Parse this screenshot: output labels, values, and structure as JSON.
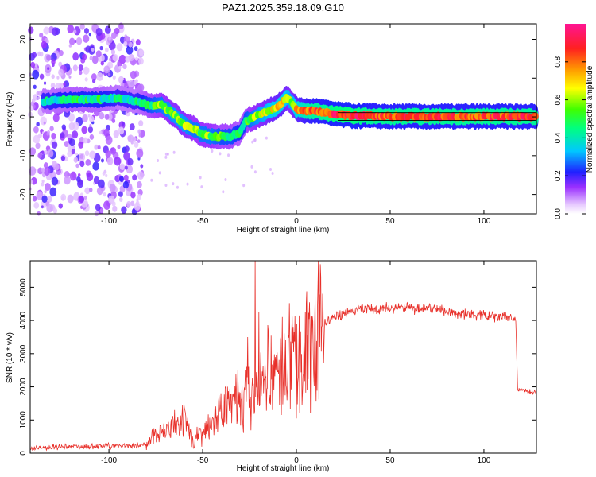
{
  "title": "PAZ1.2025.359.18.09.G10",
  "chart_data": [
    {
      "type": "heatmap",
      "name": "spectrogram",
      "xlabel": "Height of straight line (km)",
      "ylabel": "Frequency (Hz)",
      "xlim": [
        -142,
        128
      ],
      "ylim": [
        -25,
        24
      ],
      "xticks": [
        -100,
        -50,
        0,
        50,
        100
      ],
      "yticks": [
        -20,
        -10,
        0,
        10,
        20
      ],
      "xtick_labels": [
        "-100",
        "-50",
        "0",
        "50",
        "100"
      ],
      "ytick_labels": [
        "-20",
        "-10",
        "0",
        "10",
        "20"
      ],
      "noise_region_x": [
        -142,
        -82
      ],
      "ridge": {
        "x": [
          -135,
          -120,
          -105,
          -95,
          -85,
          -78,
          -72,
          -65,
          -60,
          -55,
          -50,
          -45,
          -40,
          -35,
          -30,
          -27,
          -24,
          -20,
          -15,
          -10,
          -7,
          -5,
          -3,
          0,
          5,
          10,
          15,
          20,
          25,
          30,
          40,
          50,
          60,
          70,
          80,
          90,
          100,
          110,
          120,
          128
        ],
        "y": [
          4,
          4.5,
          4.5,
          5,
          4,
          3,
          3,
          0.5,
          -2,
          -3,
          -4.5,
          -5,
          -5,
          -5,
          -4,
          -1,
          -0.5,
          0.5,
          1.5,
          2.5,
          4,
          5,
          4,
          2,
          1.5,
          1.5,
          1.2,
          0.8,
          0.5,
          0.3,
          0.2,
          0.1,
          0.1,
          0.1,
          0.1,
          0.1,
          0.1,
          0.1,
          0.1,
          0.1
        ],
        "amplitude": [
          0.4,
          0.45,
          0.45,
          0.4,
          0.4,
          0.5,
          0.55,
          0.6,
          0.6,
          0.55,
          0.55,
          0.55,
          0.5,
          0.5,
          0.45,
          0.5,
          0.55,
          0.6,
          0.65,
          0.7,
          0.7,
          0.65,
          0.6,
          0.7,
          0.8,
          0.85,
          0.85,
          0.9,
          0.9,
          0.9,
          0.85,
          0.85,
          0.85,
          0.85,
          0.85,
          0.85,
          0.85,
          0.85,
          0.85,
          0.85
        ]
      },
      "colorbar": {
        "label": "Normalized spectral amplitude",
        "range": [
          0,
          1
        ],
        "ticks": [
          0.0,
          0.2,
          0.4,
          0.6,
          0.8
        ],
        "tick_labels": [
          "0.0",
          "0.2",
          "0.4",
          "0.6",
          "0.8"
        ]
      }
    },
    {
      "type": "line",
      "name": "snr",
      "xlabel": "Height of straight line (km)",
      "ylabel": "SNR (10 * v/v)",
      "xlim": [
        -142,
        128
      ],
      "ylim": [
        0,
        5800
      ],
      "xticks": [
        -100,
        -50,
        0,
        50,
        100
      ],
      "yticks": [
        0,
        1000,
        2000,
        3000,
        4000,
        5000
      ],
      "xtick_labels": [
        "-100",
        "-50",
        "0",
        "50",
        "100"
      ],
      "ytick_labels": [
        "0",
        "1000",
        "2000",
        "3000",
        "4000",
        "5000"
      ],
      "series": [
        {
          "name": "SNR",
          "color": "#e8302a",
          "x": [
            -142,
            -130,
            -120,
            -110,
            -100,
            -90,
            -82,
            -78,
            -75,
            -72,
            -68,
            -65,
            -62,
            -60,
            -57,
            -55,
            -52,
            -50,
            -47,
            -45,
            -42,
            -40,
            -37,
            -35,
            -32,
            -30,
            -27,
            -25,
            -22,
            -20,
            -17,
            -15,
            -12,
            -10,
            -7,
            -5,
            -3,
            0,
            3,
            5,
            8,
            10,
            15,
            20,
            25,
            30,
            35,
            40,
            45,
            50,
            55,
            60,
            65,
            70,
            75,
            80,
            85,
            90,
            95,
            100,
            105,
            110,
            115,
            117,
            118,
            120,
            125,
            128
          ],
          "y": [
            150,
            170,
            200,
            200,
            220,
            230,
            240,
            350,
            650,
            750,
            600,
            900,
            700,
            1000,
            600,
            300,
            700,
            500,
            900,
            1000,
            1200,
            1100,
            1500,
            1300,
            1700,
            1400,
            1800,
            1500,
            1900,
            1700,
            2400,
            2300,
            2500,
            2300,
            2800,
            2900,
            2600,
            2800,
            2700,
            3100,
            3400,
            3600,
            3900,
            4100,
            4200,
            4300,
            4350,
            4350,
            4350,
            4380,
            4380,
            4380,
            4350,
            4380,
            4350,
            4300,
            4200,
            4200,
            4150,
            4150,
            4100,
            4100,
            4080,
            4000,
            1900,
            1900,
            1850,
            1850
          ],
          "spikes": [
            {
              "x": -22,
              "y": 5800
            },
            {
              "x": -20,
              "y": 4250
            },
            {
              "x": -26,
              "y": 3500
            },
            {
              "x": 7,
              "y": 4550
            },
            {
              "x": 2,
              "y": 3200
            },
            {
              "x": 0,
              "y": 1050
            },
            {
              "x": -8,
              "y": 1150
            },
            {
              "x": -15,
              "y": 3700
            }
          ]
        }
      ]
    }
  ]
}
